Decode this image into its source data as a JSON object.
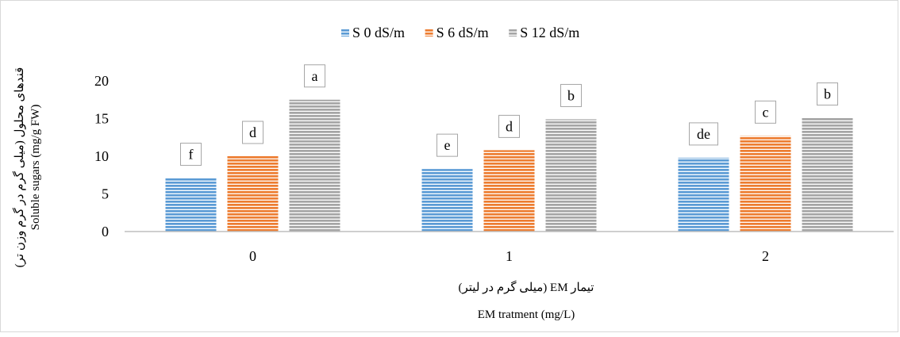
{
  "chart_data": {
    "type": "bar",
    "categories": [
      "0",
      "1",
      "2"
    ],
    "series": [
      {
        "name": "S 0 dS/m",
        "color": "#5b9bd5",
        "values": [
          7.1,
          8.3,
          9.8
        ],
        "labels": [
          "f",
          "e",
          "de"
        ]
      },
      {
        "name": "S 6 dS/m",
        "color": "#ed7d31",
        "values": [
          10.0,
          10.8,
          12.7
        ],
        "labels": [
          "d",
          "d",
          "c"
        ]
      },
      {
        "name": "S 12 dS/m",
        "color": "#a5a5a5",
        "values": [
          17.5,
          14.9,
          15.1
        ],
        "labels": [
          "a",
          "b",
          "b"
        ]
      }
    ],
    "ylim": [
      0,
      20
    ],
    "yticks": [
      "0",
      "5",
      "10",
      "15",
      "20"
    ],
    "ylabel_fa": "قندهای محلول (میلی گرم در گرم وزن تر)",
    "ylabel_en": "Soluble sugars (mg/g FW)",
    "xlabel_fa": "تیمار EM (میلی گرم در لیتر)",
    "xlabel_en": "EM tratment (mg/L)",
    "legend_position": "top",
    "grid": false
  }
}
